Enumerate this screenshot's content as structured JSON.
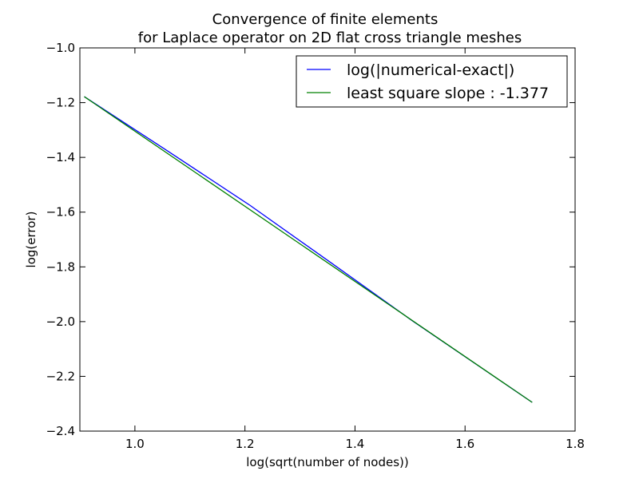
{
  "chart_data": {
    "type": "line",
    "title": "Convergence of finite elements",
    "subtitle": "for Laplace operator on 2D flat cross triangle meshes",
    "xlabel": "log(sqrt(number of nodes))",
    "ylabel": "log(error)",
    "xlim": [
      0.9,
      1.8
    ],
    "ylim": [
      -2.4,
      -1.0
    ],
    "xticks": [
      1.0,
      1.2,
      1.4,
      1.6,
      1.8
    ],
    "xtick_labels": [
      "1.0",
      "1.2",
      "1.4",
      "1.6",
      "1.8"
    ],
    "yticks": [
      -1.0,
      -1.2,
      -1.4,
      -1.6,
      -1.8,
      -2.0,
      -2.2,
      -2.4
    ],
    "ytick_labels": [
      "−1.0",
      "−1.2",
      "−1.4",
      "−1.6",
      "−1.8",
      "−2.0",
      "−2.2",
      "−2.4"
    ],
    "grid": false,
    "legend_position": "top-right",
    "series": [
      {
        "name": "log(|numerical-exact|)",
        "color": "#0000ff",
        "x": [
          0.908,
          1.056,
          1.209,
          1.355,
          1.505,
          1.654,
          1.722
        ],
        "y": [
          -1.178,
          -1.372,
          -1.575,
          -1.783,
          -1.998,
          -2.202,
          -2.295
        ]
      },
      {
        "name": "least square slope : -1.377",
        "color": "#008000",
        "x": [
          0.908,
          1.722
        ],
        "y": [
          -1.178,
          -2.295
        ]
      }
    ]
  }
}
